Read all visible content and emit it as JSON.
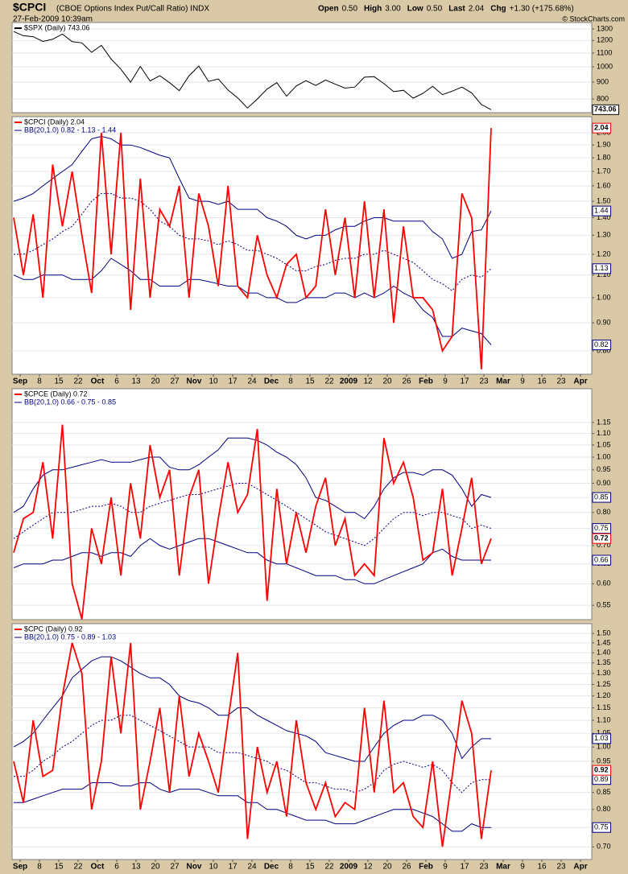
{
  "header": {
    "title": "$CPCI",
    "subtitle": "(CBOE Options Index Put/Call Ratio) INDX",
    "date": "27-Feb-2009 10:39am",
    "quote": [
      {
        "label": "Open",
        "value": "0.50"
      },
      {
        "label": "High",
        "value": "3.00"
      },
      {
        "label": "Low",
        "value": "0.50"
      },
      {
        "label": "Last",
        "value": "2.04"
      },
      {
        "label": "Chg",
        "value": "+1.30 (+175.68%)"
      }
    ],
    "credit": "© StockCharts.com"
  },
  "chart_data": [
    {
      "type": "line",
      "log_scale": true,
      "grid": true,
      "ylim": [
        728,
        1359
      ],
      "yticks": [
        800,
        900,
        1000,
        1100,
        1200,
        1300
      ],
      "series": [
        {
          "name": "$SPX (Daily) 743.06",
          "color": "#000000",
          "values": [
            1277,
            1240,
            1232,
            1192,
            1210,
            1255,
            1190,
            1180,
            1106,
            1161,
            1056,
            984,
            899,
            1003,
            907,
            940,
            896,
            848,
            940,
            1005,
            904,
            919,
            852,
            806,
            752,
            800,
            857,
            896,
            816,
            876,
            909,
            879,
            913,
            887,
            863,
            869,
            931,
            934,
            890,
            842,
            850,
            805,
            832,
            874,
            825,
            845,
            869,
            835,
            770,
            743.06
          ]
        }
      ]
    },
    {
      "type": "line",
      "log_scale": true,
      "grid": true,
      "ylim": [
        0.725,
        2.14
      ],
      "yticks": [
        {
          "value": 0.8,
          "label": "0.80"
        },
        {
          "value": 0.9,
          "label": "0.90"
        },
        {
          "value": 1.0,
          "label": "1.00"
        },
        {
          "value": 1.1,
          "label": "1.10"
        },
        {
          "value": 1.2,
          "label": "1.20"
        },
        {
          "value": 1.3,
          "label": "1.30"
        },
        {
          "value": 1.4,
          "label": "1.40"
        },
        {
          "value": 1.5,
          "label": "1.50"
        },
        {
          "value": 1.6,
          "label": "1.60"
        },
        {
          "value": 1.7,
          "label": "1.70"
        },
        {
          "value": 1.8,
          "label": "1.80"
        },
        {
          "value": 1.9,
          "label": "1.90"
        },
        {
          "value": 2.0,
          "label": "2.00"
        }
      ],
      "series": [
        {
          "name": "$CPCI (Daily) 2.04",
          "color": "#ff0000",
          "values": [
            1.4,
            1.1,
            1.42,
            1.0,
            1.75,
            1.35,
            1.7,
            1.3,
            1.02,
            2.0,
            1.2,
            2.0,
            0.95,
            1.65,
            1.0,
            1.45,
            1.35,
            1.6,
            1.0,
            1.55,
            1.35,
            1.05,
            1.6,
            1.05,
            1.0,
            1.3,
            1.1,
            1.0,
            1.15,
            1.2,
            1.0,
            1.05,
            1.45,
            1.1,
            1.4,
            1.0,
            1.5,
            1.0,
            1.45,
            0.9,
            1.35,
            1.0,
            1.0,
            0.95,
            0.8,
            0.85,
            1.55,
            1.4,
            0.74,
            2.04
          ]
        }
      ],
      "bands": {
        "name": "BB(20,1.0) 0.82 - 1.13 - 1.44",
        "color": "#000080",
        "upper": [
          1.5,
          1.52,
          1.55,
          1.6,
          1.65,
          1.7,
          1.75,
          1.85,
          1.95,
          1.97,
          1.95,
          1.9,
          1.9,
          1.88,
          1.85,
          1.82,
          1.8,
          1.65,
          1.52,
          1.5,
          1.5,
          1.48,
          1.5,
          1.45,
          1.45,
          1.45,
          1.4,
          1.38,
          1.35,
          1.3,
          1.28,
          1.3,
          1.3,
          1.33,
          1.35,
          1.35,
          1.38,
          1.4,
          1.4,
          1.38,
          1.38,
          1.38,
          1.38,
          1.32,
          1.28,
          1.18,
          1.2,
          1.32,
          1.33,
          1.44
        ],
        "middle": [
          1.2,
          1.2,
          1.22,
          1.25,
          1.28,
          1.32,
          1.35,
          1.42,
          1.5,
          1.55,
          1.55,
          1.52,
          1.52,
          1.5,
          1.45,
          1.38,
          1.35,
          1.3,
          1.28,
          1.28,
          1.27,
          1.25,
          1.27,
          1.25,
          1.22,
          1.22,
          1.2,
          1.18,
          1.15,
          1.12,
          1.12,
          1.14,
          1.15,
          1.17,
          1.18,
          1.18,
          1.2,
          1.2,
          1.22,
          1.2,
          1.18,
          1.16,
          1.12,
          1.08,
          1.06,
          1.03,
          1.08,
          1.1,
          1.09,
          1.13
        ],
        "lower": [
          1.1,
          1.08,
          1.08,
          1.1,
          1.1,
          1.1,
          1.08,
          1.08,
          1.08,
          1.12,
          1.18,
          1.15,
          1.12,
          1.08,
          1.08,
          1.05,
          1.05,
          1.05,
          1.08,
          1.08,
          1.07,
          1.06,
          1.05,
          1.05,
          1.02,
          1.02,
          1.0,
          1.0,
          0.98,
          0.98,
          1.0,
          1.0,
          1.0,
          1.02,
          1.02,
          1.0,
          1.02,
          1.0,
          1.02,
          1.05,
          1.02,
          1.0,
          0.95,
          0.92,
          0.85,
          0.85,
          0.88,
          0.87,
          0.86,
          0.82
        ]
      },
      "xtick_labels": [
        "Sep",
        "8",
        "15",
        "22",
        "Oct",
        "6",
        "13",
        "20",
        "27",
        "Nov",
        "10",
        "17",
        "24",
        "Dec",
        "8",
        "15",
        "22",
        "2009",
        "12",
        "20",
        "26",
        "Feb",
        "9",
        "17",
        "23",
        "Mar",
        "9",
        "16",
        "23",
        "Apr"
      ]
    },
    {
      "type": "line",
      "log_scale": true,
      "grid": true,
      "ylim": [
        0.519,
        1.318
      ],
      "yticks": [
        0.55,
        {
          "value": 0.6,
          "label": "0.60"
        },
        0.65,
        {
          "value": 0.7,
          "label": "0.70"
        },
        0.75,
        {
          "value": 0.8,
          "label": "0.80"
        },
        0.85,
        {
          "value": 0.9,
          "label": "0.90"
        },
        0.95,
        {
          "value": 1.0,
          "label": "1.00"
        },
        1.05,
        {
          "value": 1.1,
          "label": "1.10"
        },
        1.15
      ],
      "series": [
        {
          "name": "$CPCE (Daily) 0.72",
          "color": "#ff0000",
          "values": [
            0.68,
            0.78,
            0.8,
            0.98,
            0.72,
            1.14,
            0.6,
            0.52,
            0.75,
            0.65,
            0.85,
            0.62,
            0.9,
            0.72,
            1.05,
            0.85,
            0.95,
            0.62,
            0.85,
            0.95,
            0.6,
            0.78,
            0.98,
            0.8,
            0.86,
            1.12,
            0.56,
            0.88,
            0.65,
            0.8,
            0.68,
            0.82,
            0.92,
            0.7,
            0.78,
            0.62,
            0.65,
            0.62,
            1.08,
            0.9,
            0.98,
            0.85,
            0.66,
            0.68,
            0.88,
            0.62,
            0.75,
            0.92,
            0.65,
            0.72
          ]
        }
      ],
      "bands": {
        "name": "BB(20,1.0) 0.66 - 0.75 - 0.85",
        "color": "#000080",
        "upper": [
          0.8,
          0.82,
          0.88,
          0.93,
          0.95,
          0.95,
          0.96,
          0.97,
          0.98,
          0.99,
          0.98,
          0.98,
          0.98,
          0.99,
          1.0,
          1.0,
          0.96,
          0.95,
          0.95,
          0.97,
          1.0,
          1.03,
          1.08,
          1.08,
          1.08,
          1.07,
          1.05,
          1.02,
          1.0,
          0.97,
          0.92,
          0.85,
          0.84,
          0.82,
          0.8,
          0.8,
          0.78,
          0.82,
          0.88,
          0.92,
          0.94,
          0.94,
          0.93,
          0.95,
          0.95,
          0.93,
          0.88,
          0.82,
          0.86,
          0.85
        ],
        "middle": [
          0.72,
          0.74,
          0.76,
          0.78,
          0.8,
          0.8,
          0.8,
          0.81,
          0.82,
          0.82,
          0.83,
          0.82,
          0.8,
          0.8,
          0.82,
          0.83,
          0.84,
          0.85,
          0.86,
          0.86,
          0.87,
          0.88,
          0.89,
          0.9,
          0.9,
          0.88,
          0.86,
          0.84,
          0.82,
          0.8,
          0.78,
          0.76,
          0.74,
          0.73,
          0.72,
          0.71,
          0.7,
          0.72,
          0.75,
          0.78,
          0.8,
          0.8,
          0.79,
          0.8,
          0.8,
          0.79,
          0.78,
          0.75,
          0.76,
          0.75
        ],
        "lower": [
          0.64,
          0.65,
          0.65,
          0.65,
          0.66,
          0.66,
          0.67,
          0.68,
          0.68,
          0.67,
          0.68,
          0.68,
          0.67,
          0.7,
          0.72,
          0.7,
          0.69,
          0.7,
          0.71,
          0.72,
          0.72,
          0.71,
          0.7,
          0.69,
          0.68,
          0.68,
          0.66,
          0.65,
          0.65,
          0.64,
          0.63,
          0.62,
          0.62,
          0.62,
          0.61,
          0.61,
          0.6,
          0.6,
          0.61,
          0.62,
          0.63,
          0.64,
          0.65,
          0.68,
          0.69,
          0.67,
          0.66,
          0.66,
          0.66,
          0.66
        ]
      }
    },
    {
      "type": "line",
      "log_scale": true,
      "grid": true,
      "ylim": [
        0.669,
        1.553
      ],
      "yticks": [
        {
          "value": 0.7,
          "label": "0.70"
        },
        0.75,
        {
          "value": 0.8,
          "label": "0.80"
        },
        0.85,
        {
          "value": 0.9,
          "label": "0.90"
        },
        0.95,
        {
          "value": 1.0,
          "label": "1.00"
        },
        1.05,
        {
          "value": 1.1,
          "label": "1.10"
        },
        1.15,
        {
          "value": 1.2,
          "label": "1.20"
        },
        1.25,
        {
          "value": 1.3,
          "label": "1.30"
        },
        1.35,
        {
          "value": 1.4,
          "label": "1.40"
        },
        1.45,
        {
          "value": 1.5,
          "label": "1.50"
        }
      ],
      "series": [
        {
          "name": "$CPC (Daily) 0.92",
          "color": "#ff0000",
          "values": [
            0.95,
            0.82,
            1.1,
            0.9,
            0.92,
            1.2,
            1.45,
            1.3,
            0.8,
            0.95,
            1.38,
            1.05,
            1.45,
            0.8,
            0.95,
            1.15,
            0.85,
            1.2,
            0.9,
            1.05,
            0.95,
            0.85,
            1.1,
            1.4,
            0.72,
            1.0,
            0.85,
            0.95,
            0.78,
            1.1,
            0.88,
            0.8,
            0.88,
            0.78,
            0.82,
            0.8,
            1.15,
            0.85,
            1.18,
            0.85,
            0.88,
            0.78,
            0.75,
            0.95,
            0.7,
            0.9,
            1.18,
            1.05,
            0.72,
            0.92
          ]
        }
      ],
      "bands": {
        "name": "BB(20,1.0) 0.75 - 0.89 - 1.03",
        "color": "#000080",
        "upper": [
          1.0,
          1.02,
          1.05,
          1.1,
          1.15,
          1.2,
          1.28,
          1.32,
          1.36,
          1.38,
          1.38,
          1.36,
          1.33,
          1.3,
          1.28,
          1.28,
          1.25,
          1.2,
          1.18,
          1.17,
          1.15,
          1.12,
          1.12,
          1.15,
          1.15,
          1.12,
          1.1,
          1.08,
          1.06,
          1.05,
          1.04,
          1.02,
          0.98,
          0.97,
          0.96,
          0.95,
          0.95,
          1.0,
          1.05,
          1.08,
          1.1,
          1.1,
          1.12,
          1.12,
          1.1,
          1.05,
          0.96,
          1.0,
          1.03,
          1.03
        ],
        "middle": [
          0.9,
          0.9,
          0.92,
          0.95,
          0.97,
          1.0,
          1.02,
          1.05,
          1.08,
          1.1,
          1.1,
          1.12,
          1.12,
          1.1,
          1.08,
          1.06,
          1.04,
          1.02,
          1.0,
          1.0,
          1.0,
          0.98,
          0.98,
          0.98,
          0.97,
          0.96,
          0.95,
          0.93,
          0.92,
          0.9,
          0.88,
          0.88,
          0.87,
          0.86,
          0.86,
          0.85,
          0.86,
          0.88,
          0.92,
          0.94,
          0.95,
          0.94,
          0.93,
          0.94,
          0.92,
          0.88,
          0.85,
          0.88,
          0.89,
          0.89
        ],
        "lower": [
          0.82,
          0.82,
          0.83,
          0.84,
          0.85,
          0.86,
          0.86,
          0.86,
          0.88,
          0.88,
          0.88,
          0.87,
          0.87,
          0.88,
          0.88,
          0.86,
          0.85,
          0.86,
          0.86,
          0.86,
          0.85,
          0.84,
          0.84,
          0.84,
          0.82,
          0.82,
          0.8,
          0.8,
          0.79,
          0.78,
          0.77,
          0.77,
          0.77,
          0.76,
          0.76,
          0.76,
          0.77,
          0.78,
          0.79,
          0.8,
          0.8,
          0.8,
          0.79,
          0.78,
          0.76,
          0.74,
          0.74,
          0.76,
          0.75,
          0.75
        ]
      },
      "xtick_labels": [
        "Sep",
        "8",
        "15",
        "22",
        "Oct",
        "6",
        "13",
        "20",
        "27",
        "Nov",
        "10",
        "17",
        "24",
        "Dec",
        "8",
        "15",
        "22",
        "2009",
        "12",
        "20",
        "26",
        "Feb",
        "9",
        "17",
        "23",
        "Mar",
        "9",
        "16",
        "23",
        "Apr"
      ]
    }
  ]
}
